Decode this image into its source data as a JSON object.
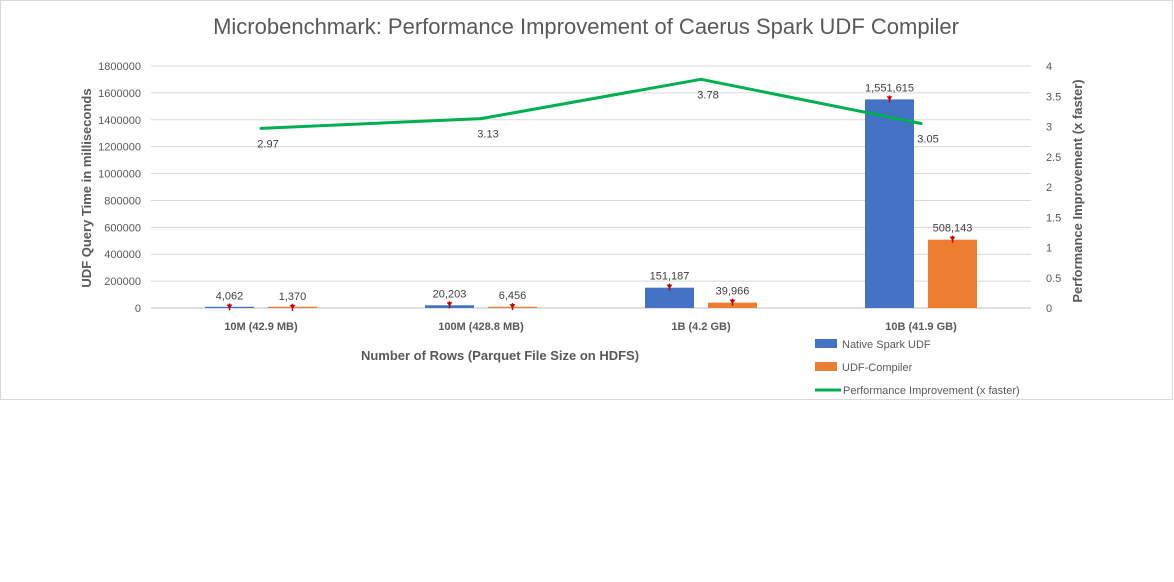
{
  "chart_data": {
    "type": "bar",
    "title": "Microbenchmark: Performance Improvement of Caerus Spark UDF Compiler",
    "xlabel": "Number of Rows (Parquet File Size on HDFS)",
    "ylabel": "UDF Query Time in milliseconds",
    "y2label": "Performance Improvement (x faster)",
    "categories": [
      "10M (42.9 MB)",
      "100M (428.8 MB)",
      "1B (4.2 GB)",
      "10B (41.9 GB)"
    ],
    "ylim": [
      0,
      1800000
    ],
    "y_ticks": [
      0,
      200000,
      400000,
      600000,
      800000,
      1000000,
      1200000,
      1400000,
      1600000,
      1800000
    ],
    "y2lim": [
      0,
      4
    ],
    "y2_ticks": [
      "0",
      "0.5",
      "1",
      "1.5",
      "2",
      "2.5",
      "3",
      "3.5",
      "4"
    ],
    "grid": true,
    "legend_position": "bottom-right",
    "series": [
      {
        "name": "Native Spark UDF",
        "type": "bar",
        "axis": "left",
        "color": "#4472c4",
        "values": [
          4062,
          20203,
          151187,
          1551615
        ],
        "labels": [
          "4,062",
          "20,203",
          "151,187",
          "1,551,615"
        ]
      },
      {
        "name": "UDF-Compiler",
        "type": "bar",
        "axis": "left",
        "color": "#ed7d31",
        "values": [
          1370,
          6456,
          39966,
          508143
        ],
        "labels": [
          "1,370",
          "6,456",
          "39,966",
          "508,143"
        ]
      },
      {
        "name": "Performance Improvement (x faster)",
        "type": "line",
        "axis": "right",
        "color": "#00b050",
        "values": [
          2.97,
          3.13,
          3.78,
          3.05
        ],
        "labels": [
          "2.97",
          "3.13",
          "3.78",
          "3.05"
        ]
      }
    ],
    "error_bar_color": "#c00000"
  }
}
